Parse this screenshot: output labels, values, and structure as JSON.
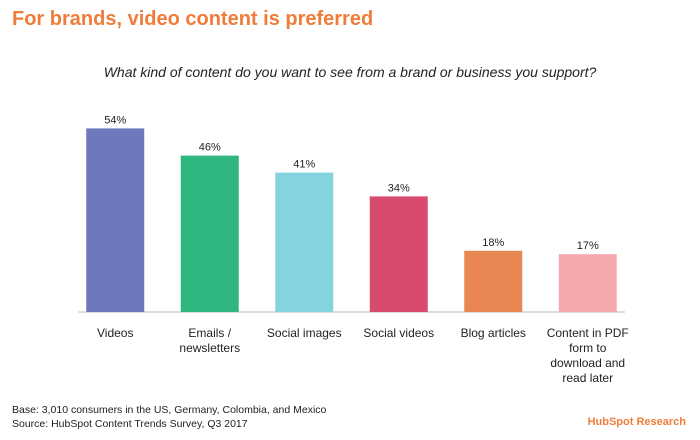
{
  "chart_data": {
    "type": "bar",
    "title": "For brands, video content is preferred",
    "subtitle": "What kind of content do you want to see from a brand or business you support?",
    "categories": [
      "Videos",
      "Emails / newsletters",
      "Social images",
      "Social videos",
      "Blog articles",
      "Content in PDF form to download and read later"
    ],
    "values": [
      54,
      46,
      41,
      34,
      18,
      17
    ],
    "value_labels": [
      "54%",
      "46%",
      "41%",
      "34%",
      "18%",
      "17%"
    ],
    "colors": [
      "#6e78bc",
      "#2fb67f",
      "#86d3e0",
      "#d94a6f",
      "#e88752",
      "#f5a9ae"
    ],
    "base_note": "Base: 3,010 consumers in the US, Germany, Colombia, and Mexico",
    "source_note": "Source: HubSpot Content Trends Survey, Q3 2017",
    "logo": "HubSpot Research"
  }
}
